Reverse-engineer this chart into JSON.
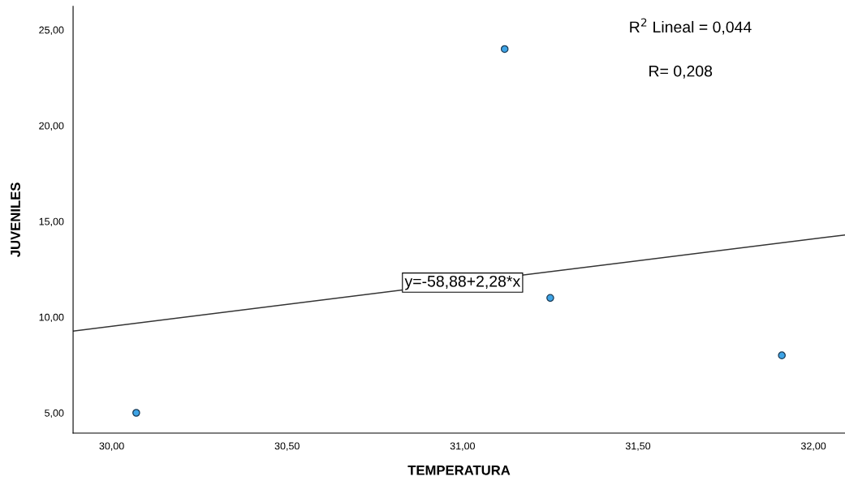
{
  "chart_data": {
    "type": "scatter",
    "xlabel": "TEMPERATURA",
    "ylabel": "JUVENILES",
    "xlim": [
      29.89,
      32.09
    ],
    "ylim": [
      3.94,
      26.23
    ],
    "xticks": [
      {
        "value": 30,
        "label": "30,00"
      },
      {
        "value": 30.5,
        "label": "30,50"
      },
      {
        "value": 31,
        "label": "31,00"
      },
      {
        "value": 31.5,
        "label": "31,50"
      },
      {
        "value": 32,
        "label": "32,00"
      }
    ],
    "yticks": [
      {
        "value": 5,
        "label": "5,00"
      },
      {
        "value": 10,
        "label": "10,00"
      },
      {
        "value": 15,
        "label": "15,00"
      },
      {
        "value": 20,
        "label": "20,00"
      },
      {
        "value": 25,
        "label": "25,00"
      }
    ],
    "grid": false,
    "marker": "circle",
    "series": [
      {
        "color": "#3ea4e6",
        "x": [
          30.07,
          31.12,
          31.25,
          31.91
        ],
        "values": [
          5,
          24,
          11,
          8
        ]
      },
      {
        "type": "line",
        "color": "#333333",
        "x": [
          29.89,
          32.09
        ],
        "values": [
          9.27,
          14.29
        ],
        "marker": "none"
      }
    ],
    "annotations": [
      "R$^{2}$ Lineal = 0,044",
      "R= 0,208",
      {
        "text": "y=-58,88+2,28*x",
        "x": 31.0,
        "y": 11.8
      }
    ]
  }
}
